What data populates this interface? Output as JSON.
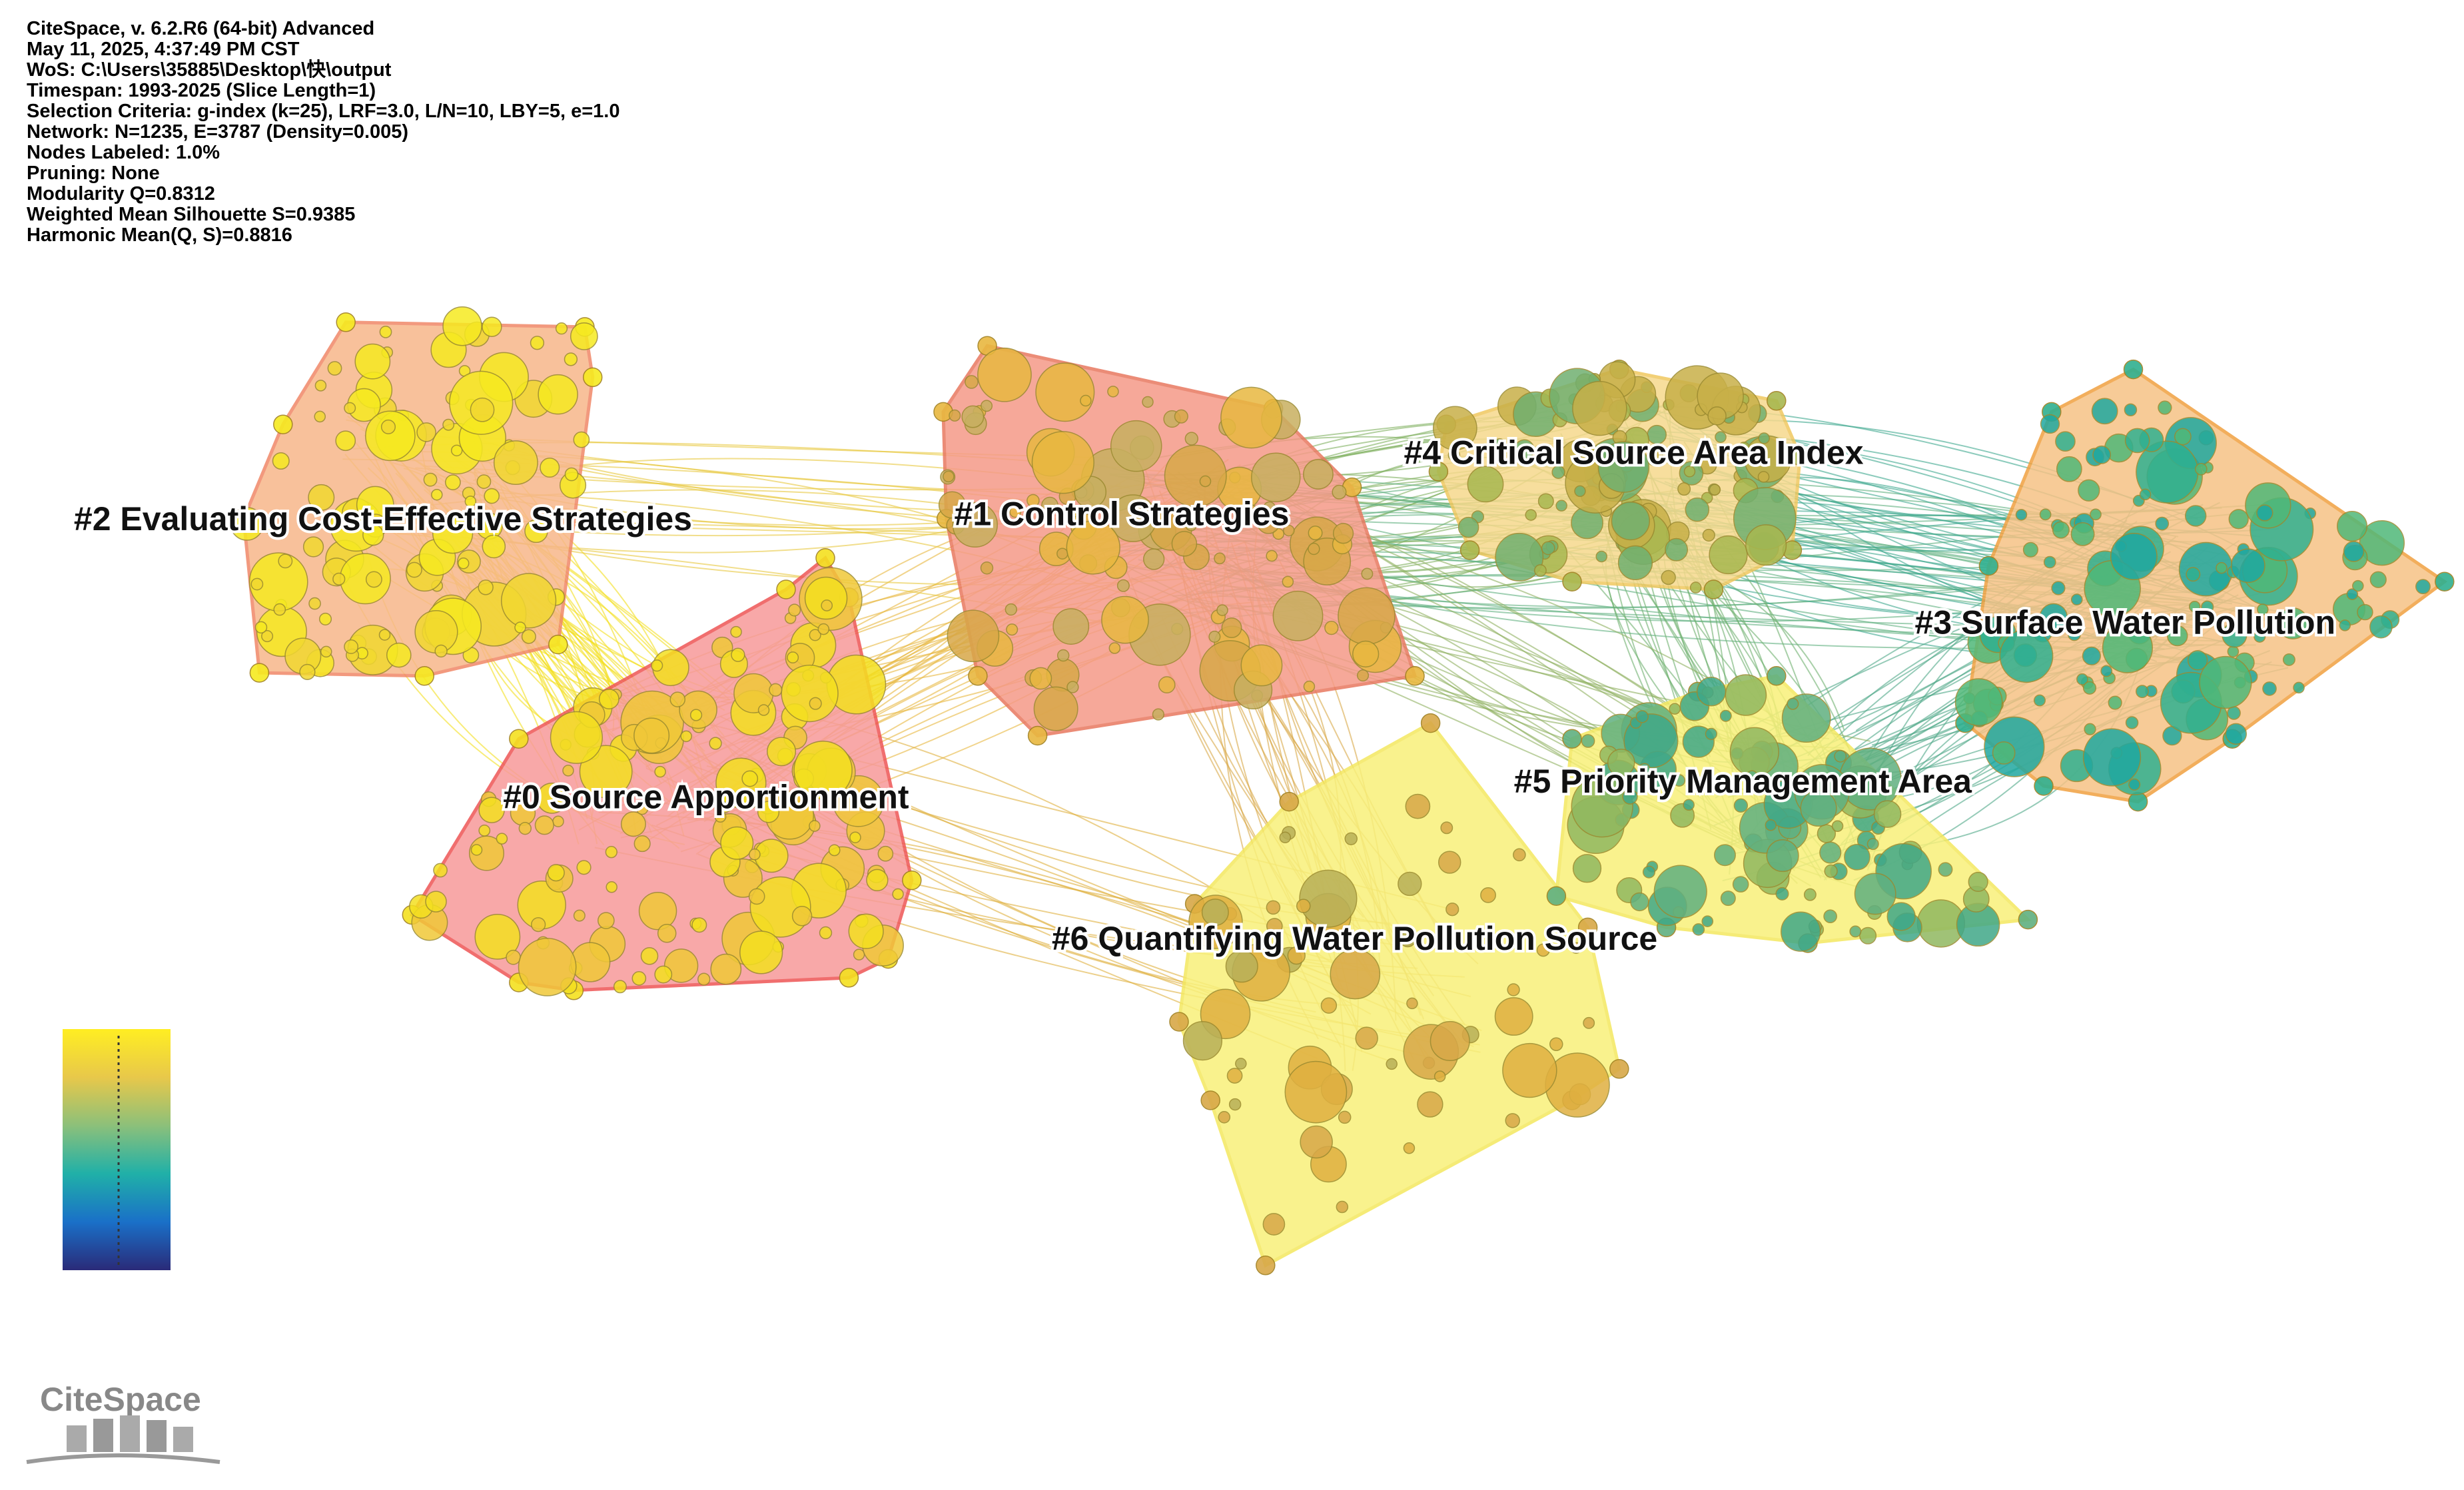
{
  "header": {
    "lines": [
      "CiteSpace, v. 6.2.R6 (64-bit) Advanced",
      "May 11, 2025, 4:37:49 PM CST",
      "WoS: C:\\Users\\35885\\Desktop\\快\\output",
      "Timespan: 1993-2025 (Slice Length=1)",
      "Selection Criteria: g-index (k=25), LRF=3.0, L/N=10, LBY=5, e=1.0",
      "Network: N=1235, E=3787 (Density=0.005)",
      "Nodes Labeled: 1.0%",
      "Pruning: None",
      "Modularity Q=0.8312",
      "Weighted Mean Silhouette S=0.9385",
      "Harmonic Mean(Q, S)=0.8816"
    ]
  },
  "clusters": [
    {
      "label": "#0 Source Apportionment"
    },
    {
      "label": "#1 Control Strategies"
    },
    {
      "label": "#2 Evaluating Cost-Effective Strategies"
    },
    {
      "label": "#3 Surface Water Pollution"
    },
    {
      "label": "#4 Critical Source Area Index"
    },
    {
      "label": "#5 Priority Management Area"
    },
    {
      "label": "#6 Quantifying Water Pollution Source"
    }
  ],
  "logo": {
    "text": "CiteSpace"
  }
}
